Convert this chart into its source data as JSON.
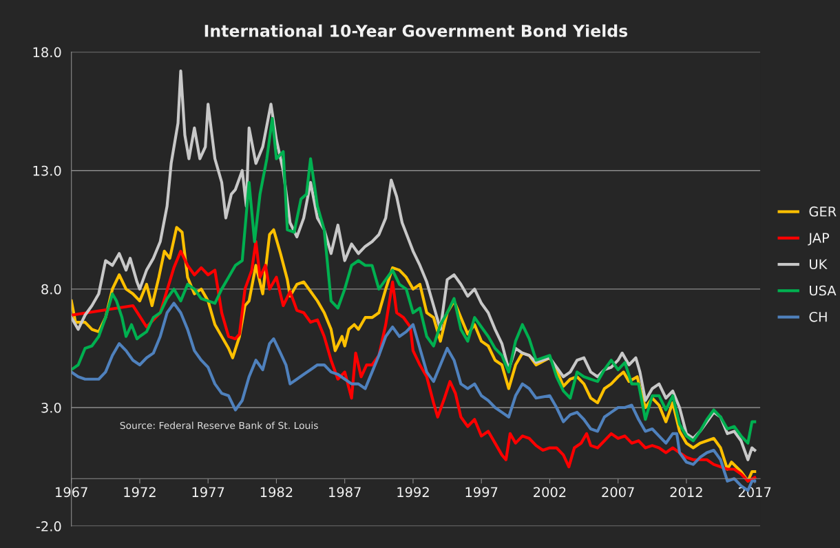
{
  "chart_data": {
    "type": "line",
    "title": "International 10-Year Government Bond Yields",
    "xlim": [
      1967,
      2017.4
    ],
    "xticks": [
      1967,
      1972,
      1977,
      1982,
      1987,
      1992,
      1997,
      2002,
      2007,
      2012,
      2017
    ],
    "ylim": [
      -2,
      18
    ],
    "yticks": [
      {
        "value": -2,
        "label": "-2.0"
      },
      {
        "value": 3,
        "label": "3.0"
      },
      {
        "value": 8,
        "label": "8.0"
      },
      {
        "value": 13,
        "label": "13.0"
      },
      {
        "value": 18,
        "label": "18.0"
      }
    ],
    "grid": "y",
    "legend": "right",
    "marker": "none",
    "line_style": "solid",
    "annotations": [
      "Source: Federal Reserve Bank of St. Louis"
    ],
    "series": [
      {
        "name": "GER",
        "color": "#ffc000",
        "x": [
          1967,
          1967.3,
          1968,
          1968.5,
          1969,
          1969.5,
          1970,
          1970.5,
          1971,
          1971.5,
          1972,
          1972.5,
          1972.9,
          1973.4,
          1973.8,
          1974.2,
          1974.7,
          1975.1,
          1975.5,
          1976,
          1976.5,
          1977,
          1977.5,
          1978,
          1978.5,
          1978.8,
          1979.3,
          1979.7,
          1980,
          1980.5,
          1981,
          1981.5,
          1981.8,
          1982.3,
          1982.8,
          1983,
          1983.5,
          1984,
          1984.5,
          1985,
          1985.5,
          1986,
          1986.3,
          1986.8,
          1987,
          1987.3,
          1987.7,
          1988,
          1988.5,
          1989,
          1989.5,
          1990,
          1990.5,
          1991,
          1991.5,
          1992,
          1992.5,
          1993,
          1993.5,
          1994,
          1994.5,
          1995,
          1995.5,
          1996,
          1996.5,
          1997,
          1997.5,
          1998,
          1998.5,
          1999,
          1999.5,
          2000,
          2000.5,
          2001,
          2002,
          2002.5,
          2003,
          2003.5,
          2004,
          2004.5,
          2005,
          2005.5,
          2006,
          2006.5,
          2007,
          2007.4,
          2007.8,
          2008.4,
          2008.8,
          2009,
          2009.5,
          2010,
          2010.5,
          2011,
          2011.5,
          2012,
          2012.5,
          2013,
          2013.5,
          2014,
          2014.5,
          2015,
          2015.3,
          2016,
          2016.5,
          2016.8,
          2017
        ],
        "values": [
          7.5,
          6.6,
          6.6,
          6.3,
          6.2,
          6.8,
          8.0,
          8.6,
          8.0,
          7.8,
          7.5,
          8.2,
          7.3,
          8.5,
          9.6,
          9.3,
          10.6,
          10.4,
          8.5,
          7.8,
          8.0,
          7.5,
          6.5,
          6.0,
          5.5,
          5.1,
          6.0,
          7.3,
          7.5,
          9.0,
          7.8,
          10.3,
          10.5,
          9.5,
          8.4,
          7.7,
          8.2,
          8.3,
          7.9,
          7.5,
          7.0,
          6.3,
          5.4,
          6.0,
          5.6,
          6.3,
          6.5,
          6.3,
          6.8,
          6.8,
          7.0,
          8.0,
          8.9,
          8.8,
          8.5,
          8.0,
          8.2,
          7.0,
          6.8,
          5.8,
          7.0,
          7.5,
          6.8,
          6.1,
          6.5,
          5.8,
          5.6,
          5.0,
          4.8,
          3.8,
          4.8,
          5.3,
          5.2,
          4.8,
          5.1,
          4.6,
          3.9,
          4.2,
          4.3,
          4.0,
          3.4,
          3.2,
          3.8,
          4.0,
          4.3,
          4.5,
          4.1,
          4.3,
          3.4,
          3.0,
          3.4,
          3.1,
          2.4,
          3.2,
          2.0,
          1.5,
          1.3,
          1.5,
          1.6,
          1.7,
          1.3,
          0.4,
          0.7,
          0.3,
          -0.1,
          0.3,
          0.3
        ]
      },
      {
        "name": "JAP",
        "color": "#ff0000",
        "x": [
          1967,
          1971.5,
          1972.5,
          1973.5,
          1974.5,
          1975,
          1975.5,
          1976,
          1976.5,
          1977,
          1977.5,
          1978,
          1978.5,
          1979,
          1979.3,
          1979.7,
          1980.2,
          1980.5,
          1980.8,
          1981.2,
          1981.5,
          1982,
          1982.5,
          1983,
          1983.5,
          1984,
          1984.5,
          1985,
          1985.5,
          1986,
          1986.5,
          1987,
          1987.5,
          1987.8,
          1988.2,
          1988.6,
          1989,
          1989.5,
          1990,
          1990.5,
          1990.8,
          1991.3,
          1991.8,
          1992,
          1992.5,
          1993,
          1993.5,
          1993.8,
          1994.3,
          1994.7,
          1995.1,
          1995.5,
          1996,
          1996.5,
          1997,
          1997.5,
          1998,
          1998.5,
          1998.8,
          1999.1,
          1999.5,
          2000,
          2000.5,
          2001,
          2001.5,
          2002,
          2002.5,
          2003,
          2003.4,
          2003.8,
          2004.3,
          2004.7,
          2005,
          2005.5,
          2006,
          2006.5,
          2007,
          2007.5,
          2008,
          2008.5,
          2009,
          2009.5,
          2010,
          2010.5,
          2011,
          2011.5,
          2012,
          2012.5,
          2013,
          2013.5,
          2014,
          2014.5,
          2015,
          2015.5,
          2016,
          2016.5,
          2017
        ],
        "values": [
          6.9,
          7.3,
          6.4,
          7.0,
          8.9,
          9.6,
          9.0,
          8.6,
          8.9,
          8.6,
          8.8,
          7.0,
          6.0,
          5.9,
          6.1,
          8.0,
          8.8,
          10.0,
          8.5,
          9.0,
          8.0,
          8.5,
          7.3,
          7.9,
          7.1,
          7.0,
          6.6,
          6.7,
          6.0,
          5.0,
          4.2,
          4.5,
          3.4,
          5.3,
          4.3,
          4.8,
          4.8,
          5.2,
          6.5,
          8.3,
          7.0,
          6.8,
          6.4,
          5.4,
          4.8,
          4.3,
          3.2,
          2.6,
          3.4,
          4.1,
          3.6,
          2.6,
          2.2,
          2.5,
          1.8,
          2.0,
          1.5,
          1.0,
          0.8,
          1.9,
          1.5,
          1.8,
          1.7,
          1.4,
          1.2,
          1.3,
          1.3,
          1.0,
          0.5,
          1.3,
          1.5,
          1.9,
          1.4,
          1.3,
          1.6,
          1.9,
          1.7,
          1.8,
          1.5,
          1.6,
          1.3,
          1.4,
          1.3,
          1.1,
          1.3,
          1.1,
          0.9,
          0.8,
          0.8,
          0.8,
          0.6,
          0.5,
          0.4,
          0.4,
          0.2,
          -0.1,
          0.05
        ]
      },
      {
        "name": "UK",
        "color": "#c8c8c8",
        "x": [
          1967,
          1967.5,
          1968,
          1968.5,
          1969,
          1969.5,
          1970,
          1970.5,
          1971,
          1971.3,
          1971.8,
          1972,
          1972.5,
          1973,
          1973.5,
          1974,
          1974.3,
          1974.8,
          1975,
          1975.3,
          1975.6,
          1976,
          1976.4,
          1976.8,
          1977,
          1977.5,
          1978,
          1978.3,
          1978.7,
          1979,
          1979.5,
          1979.8,
          1980,
          1980.5,
          1981,
          1981.6,
          1982,
          1982.5,
          1983,
          1983.5,
          1984,
          1984.5,
          1985,
          1985.5,
          1986,
          1986.5,
          1987,
          1987.5,
          1988,
          1988.5,
          1989,
          1989.5,
          1990,
          1990.4,
          1990.8,
          1991.2,
          1992,
          1992.5,
          1993,
          1993.5,
          1994,
          1994.5,
          1995,
          1995.5,
          1996,
          1996.5,
          1997,
          1997.5,
          1998,
          1998.5,
          1999,
          1999.5,
          2000,
          2000.5,
          2001,
          2002,
          2002.5,
          2003,
          2003.5,
          2004,
          2004.5,
          2005,
          2005.5,
          2006,
          2006.5,
          2007,
          2007.3,
          2007.8,
          2008.3,
          2008.6,
          2009,
          2009.5,
          2010,
          2010.5,
          2011,
          2011.5,
          2012,
          2012.5,
          2013,
          2013.5,
          2014,
          2014.5,
          2015,
          2015.5,
          2016,
          2016.5,
          2016.8,
          2017
        ],
        "values": [
          6.8,
          6.3,
          6.9,
          7.3,
          7.8,
          9.2,
          9.0,
          9.5,
          8.8,
          9.3,
          8.3,
          8.0,
          8.8,
          9.3,
          10.0,
          11.5,
          13.3,
          15.0,
          17.2,
          14.5,
          13.5,
          14.8,
          13.5,
          14.0,
          15.8,
          13.5,
          12.5,
          11.0,
          12.0,
          12.2,
          13.0,
          11.5,
          14.8,
          13.3,
          14.0,
          15.8,
          14.3,
          13.0,
          10.8,
          10.2,
          11.0,
          12.5,
          11.0,
          10.5,
          9.5,
          10.7,
          9.2,
          9.9,
          9.5,
          9.8,
          10.0,
          10.3,
          11.0,
          12.6,
          11.9,
          10.8,
          9.6,
          9.0,
          8.3,
          7.3,
          6.3,
          8.4,
          8.6,
          8.2,
          7.7,
          8.0,
          7.4,
          7.0,
          6.3,
          5.7,
          4.6,
          5.5,
          5.3,
          5.2,
          4.9,
          5.1,
          4.7,
          4.3,
          4.5,
          5.0,
          5.1,
          4.5,
          4.3,
          4.6,
          4.7,
          5.0,
          5.3,
          4.8,
          5.1,
          4.5,
          3.3,
          3.8,
          4.0,
          3.4,
          3.7,
          3.0,
          1.9,
          1.7,
          2.0,
          2.4,
          2.8,
          2.6,
          1.9,
          2.0,
          1.6,
          0.8,
          1.3,
          1.2
        ]
      },
      {
        "name": "USA",
        "color": "#00b050",
        "x": [
          1967,
          1967.5,
          1968,
          1968.5,
          1969,
          1969.5,
          1970,
          1970.3,
          1970.7,
          1971,
          1971.4,
          1971.8,
          1972,
          1972.5,
          1973,
          1973.5,
          1974,
          1974.5,
          1975,
          1975.5,
          1976,
          1976.5,
          1977,
          1977.5,
          1978,
          1978.5,
          1979,
          1979.5,
          1980,
          1980.4,
          1980.8,
          1981.3,
          1981.7,
          1982,
          1982.5,
          1982.8,
          1983.3,
          1983.8,
          1984.2,
          1984.5,
          1985,
          1985.5,
          1986,
          1986.5,
          1987,
          1987.5,
          1988,
          1988.5,
          1989,
          1989.5,
          1990,
          1990.5,
          1991,
          1991.5,
          1992,
          1992.5,
          1993,
          1993.5,
          1994,
          1994.5,
          1995,
          1995.5,
          1996,
          1996.5,
          1997,
          1997.5,
          1998,
          1998.5,
          1999,
          1999.5,
          2000,
          2000.5,
          2001,
          2002,
          2002.5,
          2003,
          2003.5,
          2004,
          2004.5,
          2005,
          2005.5,
          2006,
          2006.5,
          2007,
          2007.5,
          2008,
          2008.5,
          2009,
          2009.5,
          2010,
          2010.5,
          2011,
          2011.5,
          2012,
          2012.5,
          2013,
          2013.5,
          2014,
          2014.5,
          2015,
          2015.5,
          2016,
          2016.5,
          2016.8,
          2017
        ],
        "values": [
          4.6,
          4.8,
          5.5,
          5.6,
          6.0,
          6.8,
          7.8,
          7.5,
          6.8,
          6.0,
          6.5,
          5.9,
          6.0,
          6.2,
          6.8,
          7.0,
          7.6,
          8.0,
          7.5,
          8.2,
          8.0,
          7.6,
          7.5,
          7.4,
          8.0,
          8.5,
          9.0,
          9.2,
          12.5,
          10.0,
          12.0,
          13.5,
          15.2,
          13.5,
          13.8,
          10.5,
          10.4,
          11.8,
          12.0,
          13.5,
          11.5,
          10.5,
          7.5,
          7.2,
          8.0,
          9.0,
          9.2,
          9.0,
          9.0,
          8.0,
          8.4,
          8.8,
          8.2,
          8.0,
          7.0,
          7.2,
          6.0,
          5.6,
          6.5,
          7.0,
          7.6,
          6.3,
          5.8,
          6.8,
          6.4,
          6.0,
          5.5,
          5.2,
          4.5,
          5.8,
          6.5,
          5.9,
          5.0,
          5.2,
          4.3,
          3.7,
          3.4,
          4.5,
          4.3,
          4.2,
          4.1,
          4.6,
          5.0,
          4.6,
          4.9,
          4.0,
          4.0,
          2.5,
          3.5,
          3.5,
          2.9,
          3.5,
          2.3,
          1.8,
          1.6,
          2.0,
          2.5,
          2.9,
          2.6,
          2.1,
          2.2,
          1.8,
          1.5,
          2.4,
          2.4
        ]
      },
      {
        "name": "CH",
        "color": "#4f81bd",
        "x": [
          1967,
          1967.5,
          1968,
          1969,
          1969.5,
          1970,
          1970.5,
          1971,
          1971.5,
          1972,
          1972.5,
          1973,
          1973.5,
          1974,
          1974.5,
          1975,
          1975.5,
          1976,
          1976.5,
          1977,
          1977.5,
          1978,
          1978.5,
          1979,
          1979.5,
          1980,
          1980.5,
          1981,
          1981.5,
          1981.8,
          1982.3,
          1982.7,
          1983,
          1983.5,
          1984,
          1984.5,
          1985,
          1985.5,
          1986,
          1986.5,
          1987,
          1987.5,
          1988,
          1988.5,
          1989,
          1989.5,
          1990,
          1990.5,
          1991,
          1991.5,
          1992,
          1992.5,
          1993,
          1993.5,
          1994,
          1994.5,
          1995,
          1995.5,
          1996,
          1996.5,
          1997,
          1997.5,
          1998,
          1998.5,
          1999,
          1999.5,
          2000,
          2000.5,
          2001,
          2002,
          2002.5,
          2003,
          2003.5,
          2004,
          2004.5,
          2005,
          2005.5,
          2006,
          2006.5,
          2007,
          2007.5,
          2008,
          2008.5,
          2009,
          2009.5,
          2010,
          2010.5,
          2011,
          2011.3,
          2011.5,
          2012,
          2012.5,
          2013,
          2013.5,
          2014,
          2014.5,
          2015,
          2015.5,
          2016,
          2016.5,
          2016.8,
          2017
        ],
        "values": [
          4.5,
          4.3,
          4.2,
          4.2,
          4.5,
          5.2,
          5.7,
          5.4,
          5.0,
          4.8,
          5.1,
          5.3,
          6.0,
          7.0,
          7.4,
          7.0,
          6.3,
          5.4,
          5.0,
          4.7,
          4.0,
          3.6,
          3.5,
          2.9,
          3.3,
          4.3,
          5.0,
          4.6,
          5.7,
          5.9,
          5.3,
          4.8,
          4.0,
          4.2,
          4.4,
          4.6,
          4.8,
          4.8,
          4.5,
          4.4,
          4.2,
          4.0,
          4.0,
          3.8,
          4.5,
          5.2,
          6.0,
          6.4,
          6.0,
          6.2,
          6.5,
          5.5,
          4.5,
          4.1,
          4.8,
          5.5,
          5.0,
          4.0,
          3.8,
          4.0,
          3.5,
          3.3,
          3.0,
          2.8,
          2.6,
          3.5,
          4.0,
          3.8,
          3.4,
          3.5,
          3.0,
          2.4,
          2.7,
          2.8,
          2.5,
          2.1,
          2.0,
          2.6,
          2.8,
          3.0,
          3.0,
          3.1,
          2.5,
          2.0,
          2.1,
          1.8,
          1.5,
          1.9,
          1.9,
          1.1,
          0.7,
          0.6,
          0.9,
          1.1,
          1.2,
          0.8,
          -0.1,
          0.0,
          -0.3,
          -0.5,
          -0.1,
          -0.1
        ]
      }
    ]
  }
}
